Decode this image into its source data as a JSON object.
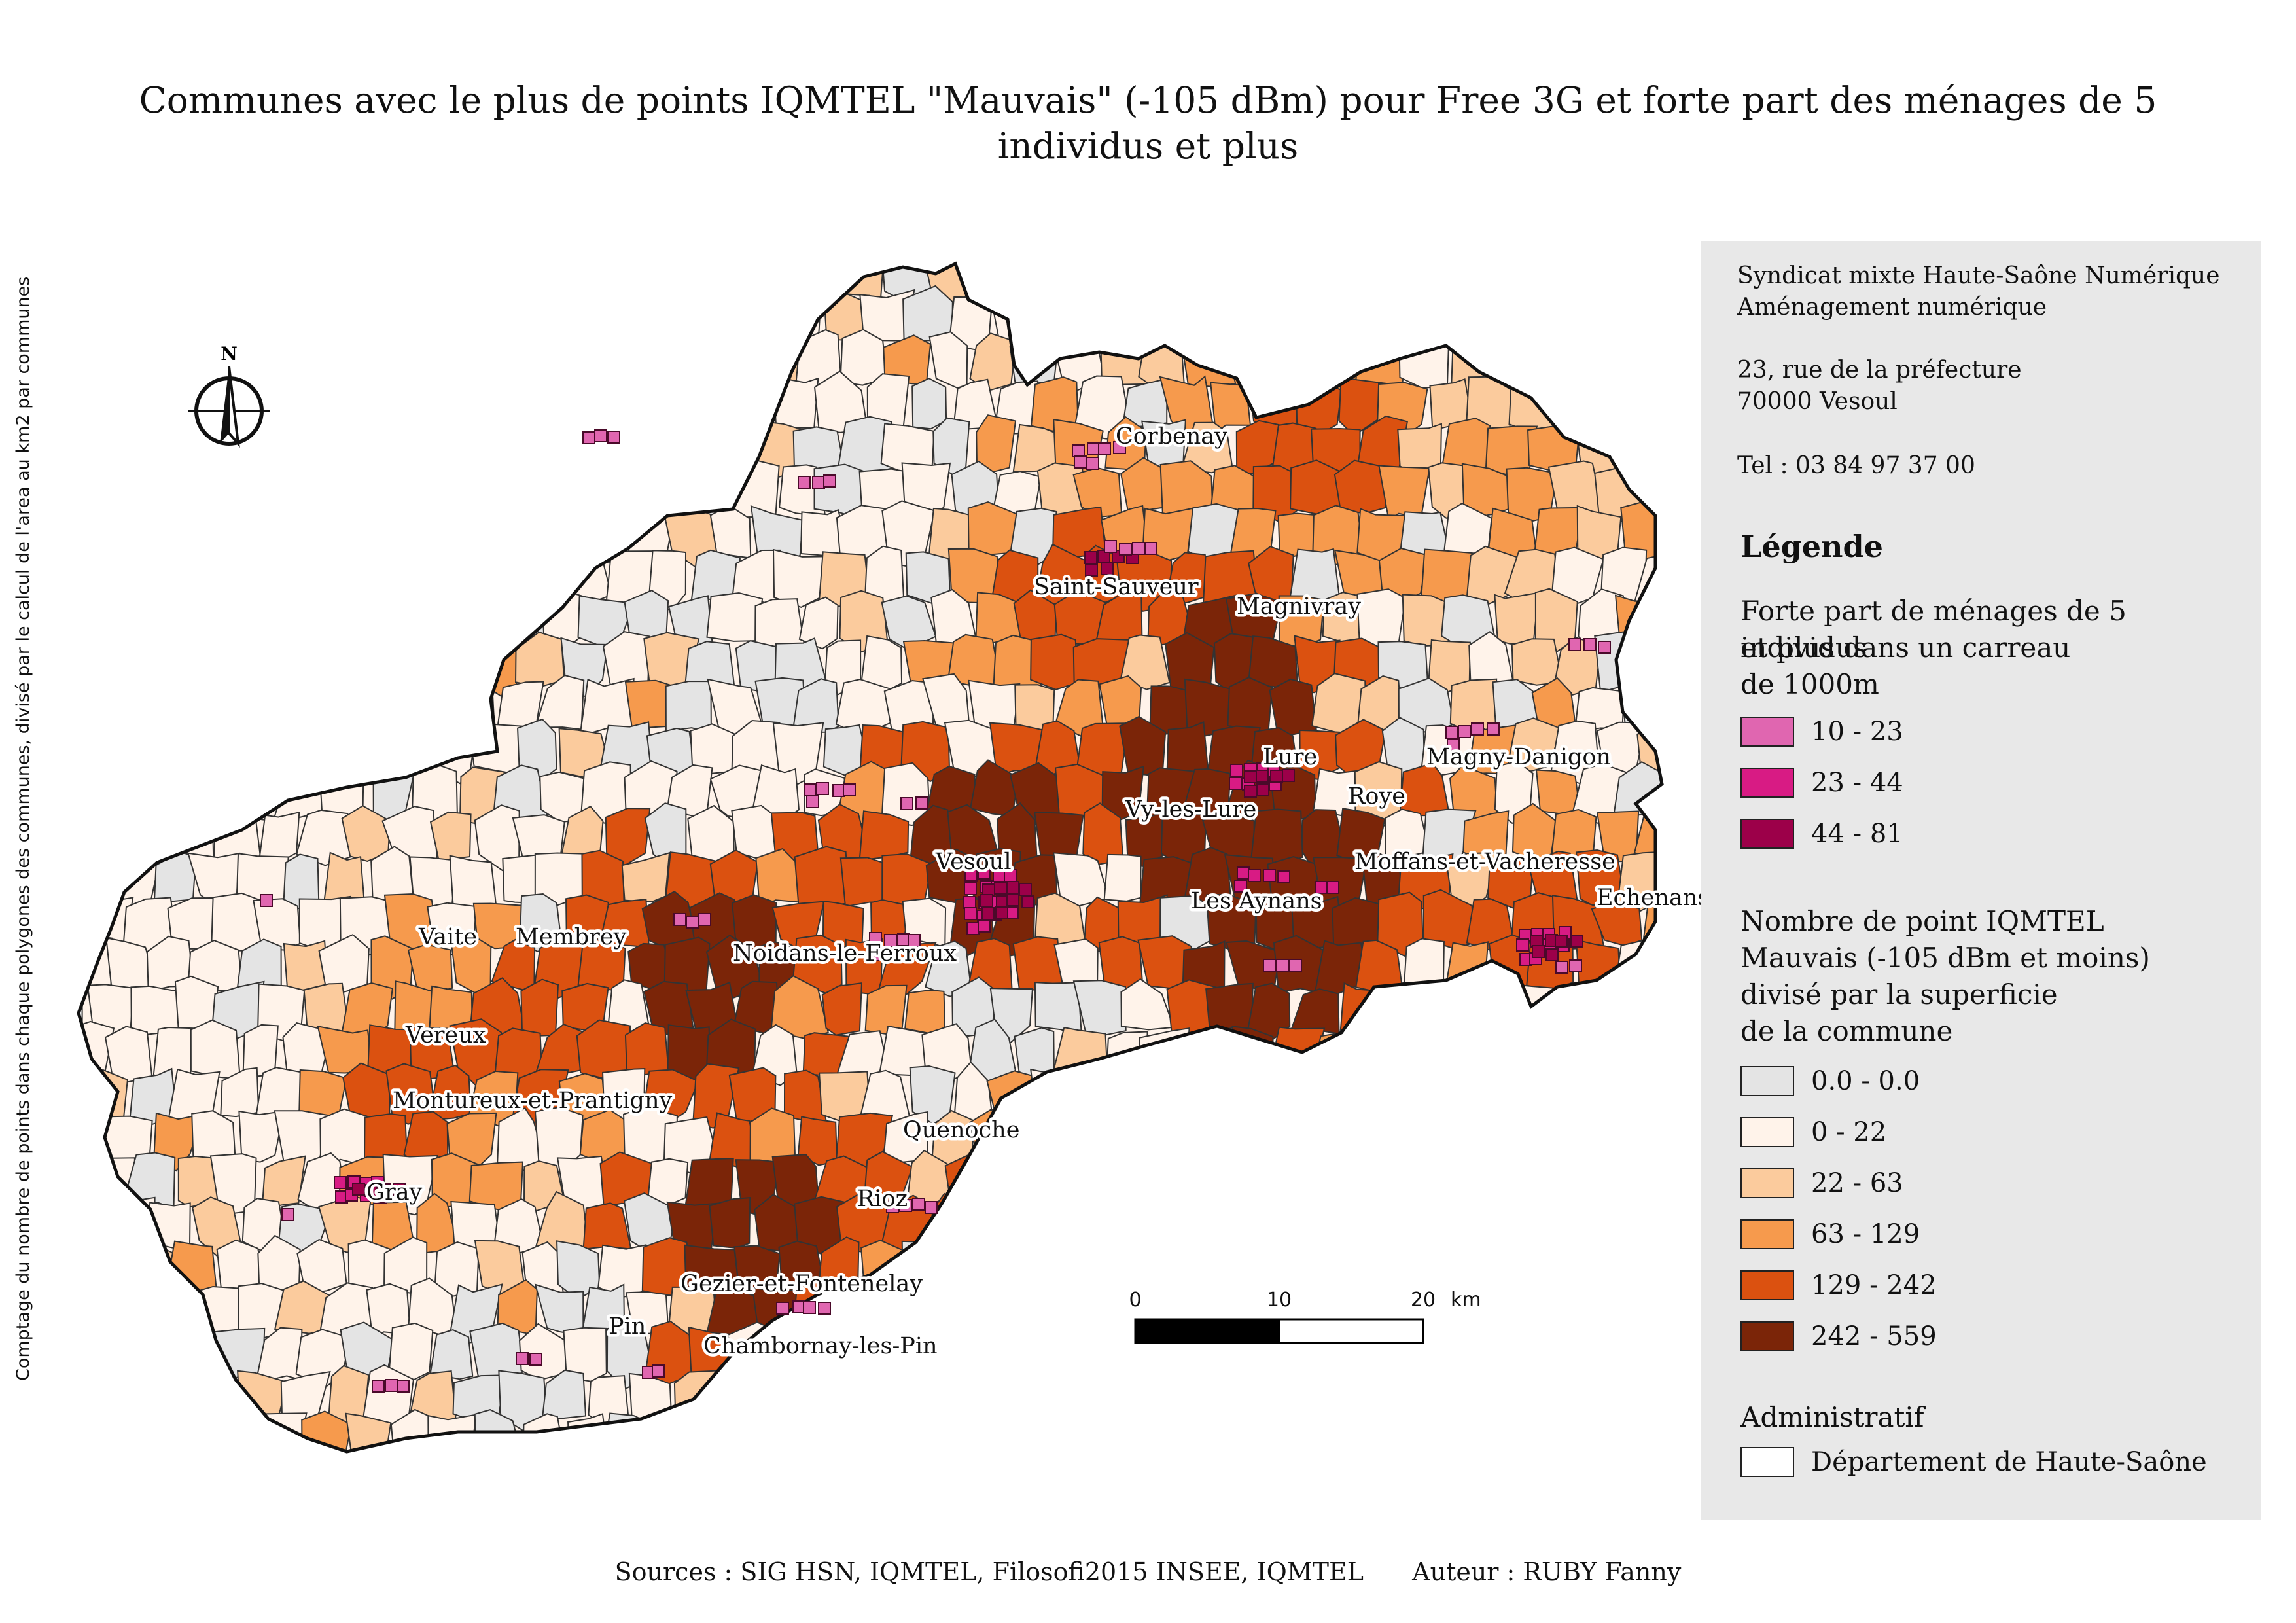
{
  "title": {
    "line1": "Communes avec le plus de points IQMTEL \"Mauvais\" (-105 dBm) pour Free 3G et forte part des ménages de 5",
    "line2": "individus et plus"
  },
  "side_note": "Comptage du nombre de points dans chaque polygones des communes, divisé par le calcul de l'area au km2 par communes",
  "organization": {
    "line1": "Syndicat mixte Haute-Saône Numérique",
    "line2": "Aménagement numérique",
    "address1": "23, rue de la préfecture",
    "address2": "70000 Vesoul",
    "phone": "Tel : 03 84 97 37 00"
  },
  "legend": {
    "heading": "Légende",
    "households": {
      "title_lines": [
        "Forte part de ménages de 5 individus",
        "et plus dans un carreau",
        "de 1000m"
      ],
      "classes": [
        {
          "label": "10 - 23",
          "color": "#e066b0"
        },
        {
          "label": "23 - 44",
          "color": "#d81b84"
        },
        {
          "label": "44 - 81",
          "color": "#9c0049"
        }
      ]
    },
    "iqmtel": {
      "title_lines": [
        "Nombre de point IQMTEL",
        "Mauvais (-105 dBm et moins)",
        "divisé par la superficie",
        "de la commune"
      ],
      "classes": [
        {
          "label": "0.0 - 0.0",
          "color": "#e4e4e4"
        },
        {
          "label": "0 - 22",
          "color": "#fff3ea"
        },
        {
          "label": "22 - 63",
          "color": "#fbcb9d"
        },
        {
          "label": "63 - 129",
          "color": "#f69a4d"
        },
        {
          "label": "129 - 242",
          "color": "#db5110"
        },
        {
          "label": "242 - 559",
          "color": "#7b2508"
        }
      ]
    },
    "admin_title": "Administratif",
    "admin_item": {
      "label": "Département de Haute-Saône",
      "color": "#ffffff"
    }
  },
  "map": {
    "north_label": "N",
    "scale_ticks": [
      "0",
      "10",
      "20"
    ],
    "scale_unit": "km",
    "communes": [
      {
        "name": "Corbenay"
      },
      {
        "name": "Saint-Sauveur"
      },
      {
        "name": "Magnivray"
      },
      {
        "name": "Lure"
      },
      {
        "name": "Magny-Danigon"
      },
      {
        "name": "Roye"
      },
      {
        "name": "Vy-les-Lure"
      },
      {
        "name": "Moffans-et-Vacheresse"
      },
      {
        "name": "Les Aynans"
      },
      {
        "name": "Echenans-sous-Mont-Vaudois"
      },
      {
        "name": "Vesoul"
      },
      {
        "name": "Noidans-le-Ferroux"
      },
      {
        "name": "Vaite"
      },
      {
        "name": "Membrey"
      },
      {
        "name": "Vereux"
      },
      {
        "name": "Montureux-et-Prantigny"
      },
      {
        "name": "Gray"
      },
      {
        "name": "Quenoche"
      },
      {
        "name": "Rioz"
      },
      {
        "name": "Gezier-et-Fontenelay"
      },
      {
        "name": "Pin"
      },
      {
        "name": "Chambornay-les-Pin"
      }
    ]
  },
  "footer": {
    "sources": "Sources : SIG HSN, IQMTEL, Filosofi2015 INSEE, IQMTEL",
    "author": "Auteur : RUBY Fanny"
  }
}
